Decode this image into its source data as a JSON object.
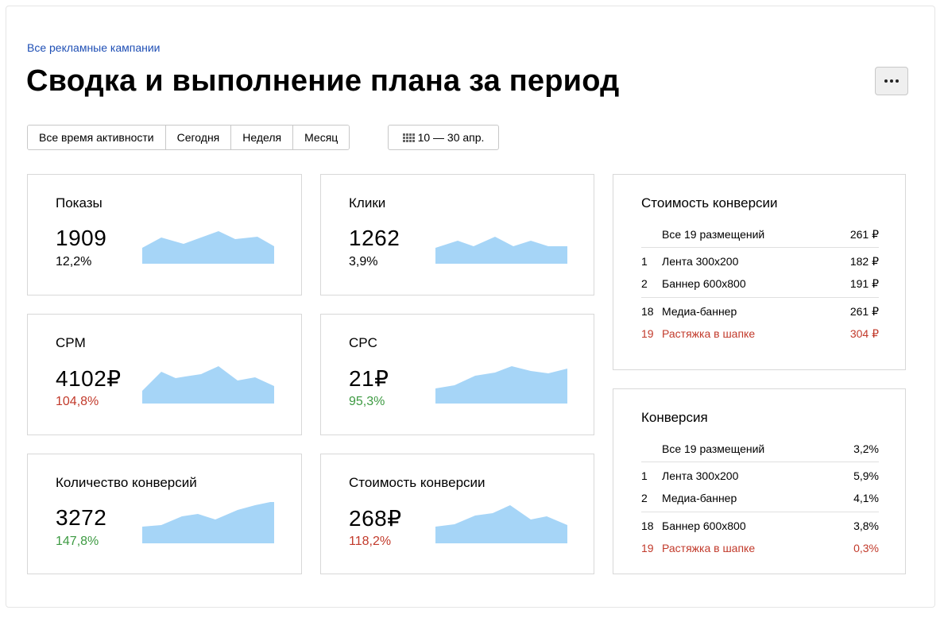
{
  "breadcrumb": "Все рекламные кампании",
  "title": "Сводка и выполнение плана за период",
  "more_button_icon": "ellipsis-icon",
  "ranges": [
    "Все время активности",
    "Сегодня",
    "Неделя",
    "Месяц"
  ],
  "date_range": "10 — 30 апр.",
  "date_icon": "calendar-icon",
  "spark_color": "#a6d5f7",
  "metrics": [
    {
      "title": "Показы",
      "value": "1909",
      "change": "12,2%",
      "tone": "neutral"
    },
    {
      "title": "Клики",
      "value": "1262",
      "change": "3,9%",
      "tone": "neutral"
    },
    {
      "title": "CPM",
      "value": "4102₽",
      "change": "104,8%",
      "tone": "red"
    },
    {
      "title": "CPC",
      "value": "21₽",
      "change": "95,3%",
      "tone": "green"
    },
    {
      "title": "Количество конверсий",
      "value": "3272",
      "change": "147,8%",
      "tone": "green"
    },
    {
      "title": "Стоимость конверсии",
      "value": "268₽",
      "change": "118,2%",
      "tone": "red"
    }
  ],
  "cost_panel": {
    "title": "Стоимость конверсии",
    "total": {
      "name": "Все 19 размещений",
      "value": "261 ₽"
    },
    "top": [
      {
        "rank": "1",
        "name": "Лента 300x200",
        "value": "182 ₽"
      },
      {
        "rank": "2",
        "name": "Баннер 600x800",
        "value": "191 ₽"
      }
    ],
    "bottom": [
      {
        "rank": "18",
        "name": "Медиа-баннер",
        "value": "261 ₽"
      },
      {
        "rank": "19",
        "name": "Растяжка в шапке",
        "value": "304 ₽"
      }
    ]
  },
  "conversion_panel": {
    "title": "Конверсия",
    "total": {
      "name": "Все 19 размещений",
      "value": "3,2%"
    },
    "top": [
      {
        "rank": "1",
        "name": "Лента 300x200",
        "value": "5,9%"
      },
      {
        "rank": "2",
        "name": "Медиа-баннер",
        "value": "4,1%"
      }
    ],
    "bottom": [
      {
        "rank": "18",
        "name": "Баннер 600x800",
        "value": "3,8%"
      },
      {
        "rank": "19",
        "name": "Растяжка в шапке",
        "value": "0,3%"
      }
    ]
  }
}
